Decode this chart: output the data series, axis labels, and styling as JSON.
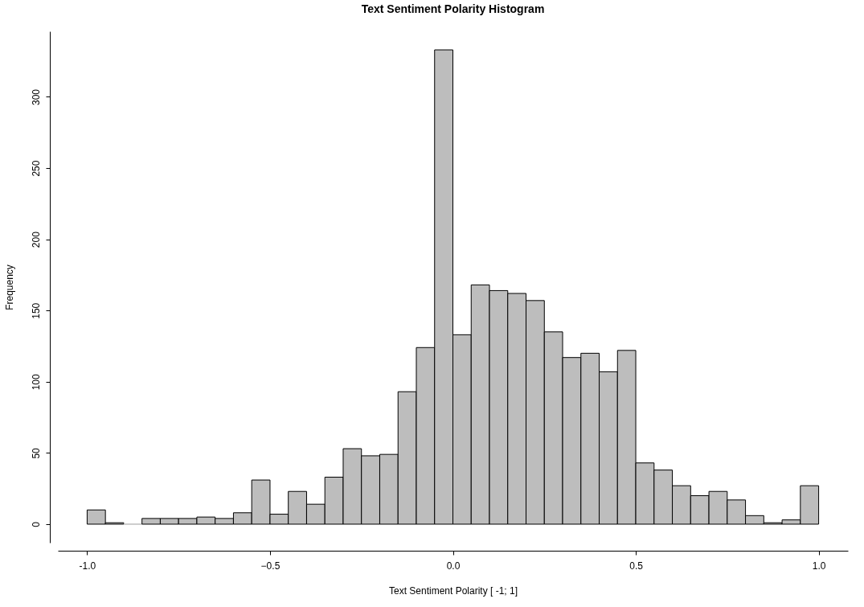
{
  "chart_data": {
    "type": "histogram",
    "title": "Text Sentiment Polarity Histogram",
    "xlabel": "Text Sentiment Polarity [ -1; 1]",
    "ylabel": "Frequency",
    "bins": [
      -1.0,
      -0.95,
      -0.9,
      -0.85,
      -0.8,
      -0.75,
      -0.7,
      -0.65,
      -0.6,
      -0.55,
      -0.5,
      -0.45,
      -0.4,
      -0.35,
      -0.3,
      -0.25,
      -0.2,
      -0.15,
      -0.1,
      -0.05,
      0.0,
      0.05,
      0.1,
      0.15,
      0.2,
      0.25,
      0.3,
      0.35,
      0.4,
      0.45,
      0.5,
      0.55,
      0.6,
      0.65,
      0.7,
      0.75,
      0.8,
      0.85,
      0.9,
      0.95,
      1.0
    ],
    "values": [
      10,
      1,
      0,
      4,
      4,
      4,
      5,
      4,
      8,
      31,
      7,
      23,
      14,
      33,
      53,
      48,
      49,
      93,
      124,
      333,
      133,
      168,
      164,
      162,
      157,
      135,
      117,
      120,
      107,
      122,
      43,
      38,
      27,
      20,
      23,
      17,
      6,
      1,
      3,
      27
    ],
    "color": "#bdbdbd",
    "xlim": [
      -1.08,
      1.08
    ],
    "ylim": [
      -13,
      346
    ],
    "xticks": [
      {
        "value": -1.0,
        "label": "-1.0"
      },
      -0.5,
      {
        "value": 0.0,
        "label": "0.0"
      },
      0.5,
      {
        "value": 1.0,
        "label": "1.0"
      }
    ],
    "yticks": [
      0,
      50,
      100,
      150,
      200,
      250,
      300
    ]
  }
}
